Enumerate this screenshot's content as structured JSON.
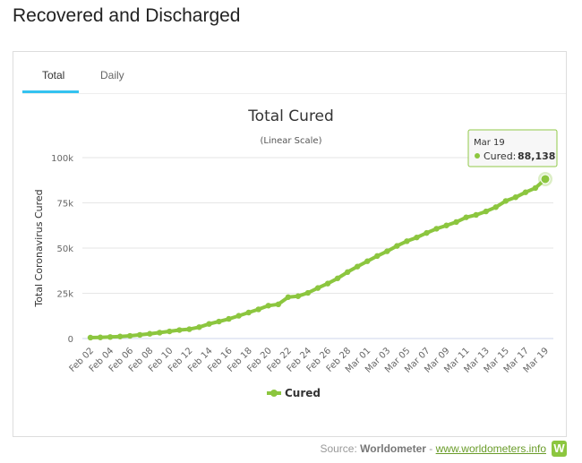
{
  "page_title": "Recovered and Discharged",
  "tabs": [
    {
      "label": "Total"
    },
    {
      "label": "Daily"
    }
  ],
  "source": {
    "prefix": "Source:",
    "name": "Worldometer",
    "sep": "-",
    "link": "www.worldometers.info",
    "logo": "W"
  },
  "chart_data": {
    "type": "line",
    "title": "Total Cured",
    "subtitle": "(Linear Scale)",
    "ylabel": "Total Coronavirus Cured",
    "xlabel": "",
    "ylim": [
      0,
      100000
    ],
    "yticks": [
      "0",
      "25k",
      "50k",
      "75k",
      "100k"
    ],
    "ytick_values": [
      0,
      25000,
      50000,
      75000,
      100000
    ],
    "grid": true,
    "legend": {
      "label": "Cured",
      "position": "bottom-center"
    },
    "color": "#8cc63f",
    "x": [
      "Feb 02",
      "Feb 03",
      "Feb 04",
      "Feb 05",
      "Feb 06",
      "Feb 07",
      "Feb 08",
      "Feb 09",
      "Feb 10",
      "Feb 11",
      "Feb 12",
      "Feb 13",
      "Feb 14",
      "Feb 15",
      "Feb 16",
      "Feb 17",
      "Feb 18",
      "Feb 19",
      "Feb 20",
      "Feb 21",
      "Feb 22",
      "Feb 23",
      "Feb 24",
      "Feb 25",
      "Feb 26",
      "Feb 27",
      "Feb 28",
      "Feb 29",
      "Mar 01",
      "Mar 02",
      "Mar 03",
      "Mar 04",
      "Mar 05",
      "Mar 06",
      "Mar 07",
      "Mar 08",
      "Mar 09",
      "Mar 10",
      "Mar 11",
      "Mar 12",
      "Mar 13",
      "Mar 14",
      "Mar 15",
      "Mar 16",
      "Mar 17",
      "Mar 18",
      "Mar 19"
    ],
    "values": [
      510,
      620,
      840,
      1115,
      1476,
      2011,
      2616,
      3244,
      3946,
      4683,
      5150,
      6295,
      8058,
      9395,
      10865,
      12583,
      14352,
      16121,
      18177,
      18890,
      22886,
      23394,
      25227,
      27905,
      30384,
      33277,
      36711,
      39782,
      42716,
      45602,
      48228,
      51170,
      53796,
      55865,
      58358,
      60694,
      62494,
      64404,
      67003,
      68324,
      70251,
      72624,
      76034,
      78088,
      80840,
      83207,
      88138
    ],
    "tooltip": {
      "date": "Mar 19",
      "series": "Cured",
      "value": "88,138"
    }
  }
}
